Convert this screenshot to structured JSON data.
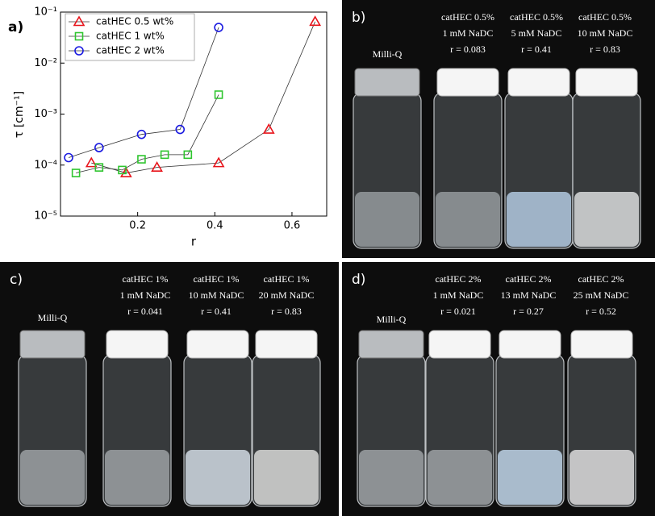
{
  "chart_data": {
    "type": "line",
    "panel_label": "a)",
    "x_label": "r",
    "y_label": "τ [cm⁻¹]",
    "log_y": true,
    "legend_position": "upper left",
    "xlim": [
      0,
      0.69
    ],
    "xticks": [
      0.2,
      0.4,
      0.6
    ],
    "ylim": [
      1e-05,
      0.1
    ],
    "yticks": [
      {
        "value": 1e-05,
        "label": "10⁻⁵"
      },
      {
        "value": 0.0001,
        "label": "10⁻⁴"
      },
      {
        "value": 0.001,
        "label": "10⁻³"
      },
      {
        "value": 0.01,
        "label": "10⁻²"
      },
      {
        "value": 0.1,
        "label": "10⁻¹"
      }
    ],
    "series": [
      {
        "name": "catHEC 0.5 wt%",
        "color": "#e8141b",
        "marker": "triangle",
        "x": [
          0.08,
          0.17,
          0.25,
          0.41,
          0.54,
          0.66
        ],
        "values": [
          0.00011,
          7e-05,
          9e-05,
          0.00011,
          0.0005,
          0.065
        ]
      },
      {
        "name": "catHEC 1 wt%",
        "color": "#2fc52f",
        "marker": "square",
        "x": [
          0.04,
          0.1,
          0.16,
          0.21,
          0.27,
          0.33,
          0.41
        ],
        "values": [
          7e-05,
          9e-05,
          8e-05,
          0.00013,
          0.00016,
          0.00016,
          0.0024
        ]
      },
      {
        "name": "catHEC 2 wt%",
        "color": "#1a1ae0",
        "marker": "circle",
        "x": [
          0.021,
          0.1,
          0.21,
          0.31,
          0.41
        ],
        "values": [
          0.00014,
          0.00022,
          0.0004,
          0.0005,
          0.05
        ]
      }
    ]
  },
  "panels": [
    {
      "label": "b)",
      "reference": "Milli-Q",
      "samples": [
        [
          "catHEC 0.5%",
          "1 mM NaDC",
          "r = 0.083"
        ],
        [
          "catHEC 0.5%",
          "5 mM NaDC",
          "r = 0.41"
        ],
        [
          "catHEC 0.5%",
          "10 mM NaDC",
          "r = 0.83"
        ]
      ]
    },
    {
      "label": "c)",
      "reference": "Milli-Q",
      "samples": [
        [
          "catHEC 1%",
          "1 mM NaDC",
          "r = 0.041"
        ],
        [
          "catHEC 1%",
          "10 mM NaDC",
          "r = 0.41"
        ],
        [
          "catHEC 1%",
          "20 mM NaDC",
          "r = 0.83"
        ]
      ]
    },
    {
      "label": "d)",
      "reference": "Milli-Q",
      "samples": [
        [
          "catHEC 2%",
          "1 mM NaDC",
          "r = 0.021"
        ],
        [
          "catHEC 2%",
          "13 mM NaDC",
          "r = 0.27"
        ],
        [
          "catHEC 2%",
          "25 mM NaDC",
          "r = 0.52"
        ]
      ]
    }
  ]
}
